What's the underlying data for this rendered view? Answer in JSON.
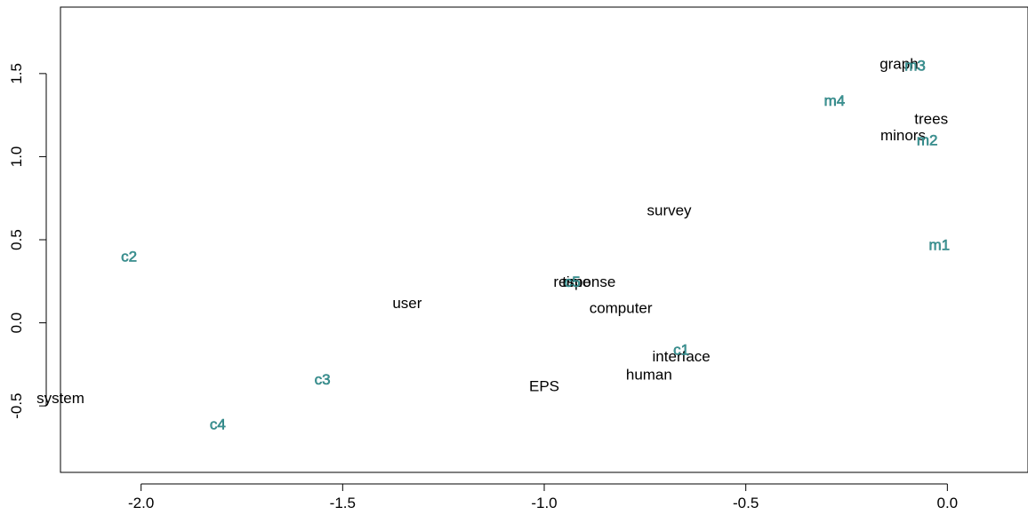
{
  "chart_data": {
    "type": "scatter",
    "title": "",
    "xlabel": "",
    "ylabel": "",
    "xlim": [
      -2.2,
      0.2
    ],
    "ylim": [
      -0.9,
      1.9
    ],
    "x_ticks": [
      -2.0,
      -1.5,
      -1.0,
      -0.5,
      0.0
    ],
    "x_tick_labels": [
      "-2.0",
      "-1.5",
      "-1.0",
      "-0.5",
      "0.0"
    ],
    "y_ticks": [
      -0.5,
      0.0,
      0.5,
      1.0,
      1.5
    ],
    "y_tick_labels": [
      "-0.5",
      "0.0",
      "0.5",
      "1.0",
      "1.5"
    ],
    "grid": false,
    "legend": "none",
    "colors": {
      "terms": "#000000",
      "documents": "#3f9b9b"
    },
    "series": [
      {
        "points": [
          {
            "label": "system",
            "x": -2.2,
            "y": -0.45
          },
          {
            "label": "user",
            "x": -1.34,
            "y": 0.12
          },
          {
            "label": "response",
            "x": -0.9,
            "y": 0.25
          },
          {
            "label": "time",
            "x": -0.92,
            "y": 0.25
          },
          {
            "label": "computer",
            "x": -0.81,
            "y": 0.09
          },
          {
            "label": "EPS",
            "x": -1.0,
            "y": -0.38
          },
          {
            "label": "human",
            "x": -0.74,
            "y": -0.31
          },
          {
            "label": "interface",
            "x": -0.66,
            "y": -0.2
          },
          {
            "label": "survey",
            "x": -0.69,
            "y": 0.68
          },
          {
            "label": "graph",
            "x": -0.12,
            "y": 1.56
          },
          {
            "label": "trees",
            "x": -0.04,
            "y": 1.23
          },
          {
            "label": "minors",
            "x": -0.11,
            "y": 1.13
          }
        ]
      },
      {
        "points": [
          {
            "label": "c1",
            "x": -0.66,
            "y": -0.16
          },
          {
            "label": "c2",
            "x": -2.03,
            "y": 0.4
          },
          {
            "label": "c3",
            "x": -1.55,
            "y": -0.34
          },
          {
            "label": "c4",
            "x": -1.81,
            "y": -0.61
          },
          {
            "label": "c5",
            "x": -0.93,
            "y": 0.25
          },
          {
            "label": "m1",
            "x": -0.02,
            "y": 0.47
          },
          {
            "label": "m2",
            "x": -0.05,
            "y": 1.1
          },
          {
            "label": "m3",
            "x": -0.08,
            "y": 1.55
          },
          {
            "label": "m4",
            "x": -0.28,
            "y": 1.34
          }
        ]
      }
    ]
  }
}
